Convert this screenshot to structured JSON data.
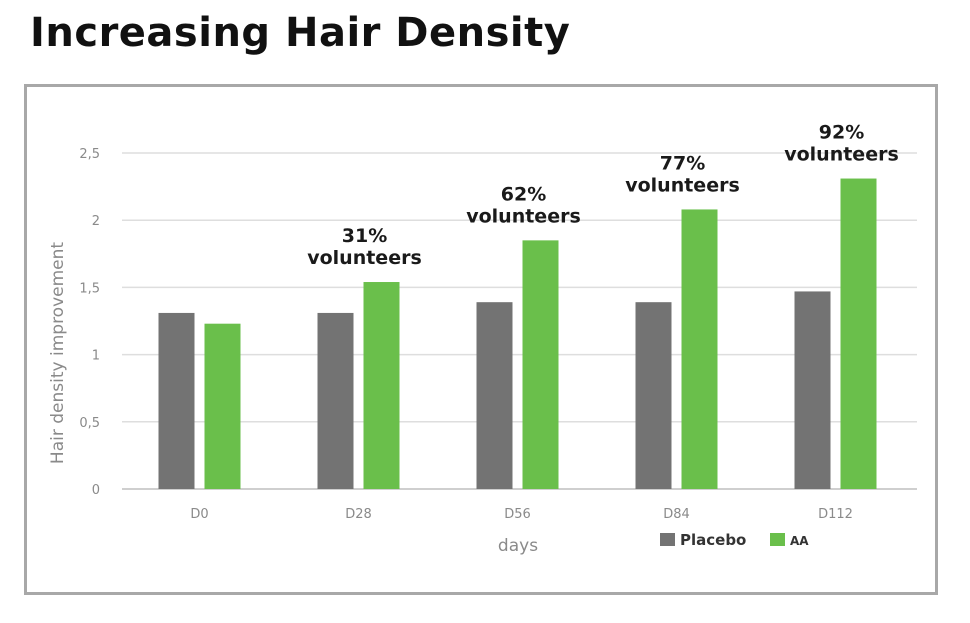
{
  "title": "Increasing Hair Density",
  "chart_data": {
    "type": "bar",
    "categories": [
      "D0",
      "D28",
      "D56",
      "D84",
      "D112"
    ],
    "series": [
      {
        "name": "Placebo",
        "values": [
          1.31,
          1.31,
          1.39,
          1.39,
          1.47
        ],
        "color": "#737373"
      },
      {
        "name": "AA",
        "values": [
          1.23,
          1.54,
          1.85,
          2.08,
          2.31
        ],
        "color": "#6abf4b"
      }
    ],
    "xlabel": "days",
    "ylabel": "Hair density improvement",
    "ylim": [
      0,
      2.5
    ],
    "yticks": [
      "0",
      "0,5",
      "1",
      "1,5",
      "2",
      "2,5"
    ],
    "grid": true,
    "legend_position": "bottom-right",
    "annotations": [
      {
        "category": "D28",
        "percent": "31%",
        "text": "volunteers"
      },
      {
        "category": "D56",
        "percent": "62%",
        "text": "volunteers"
      },
      {
        "category": "D84",
        "percent": "77%",
        "text": "volunteers"
      },
      {
        "category": "D112",
        "percent": "92%",
        "text": "volunteers"
      }
    ]
  }
}
